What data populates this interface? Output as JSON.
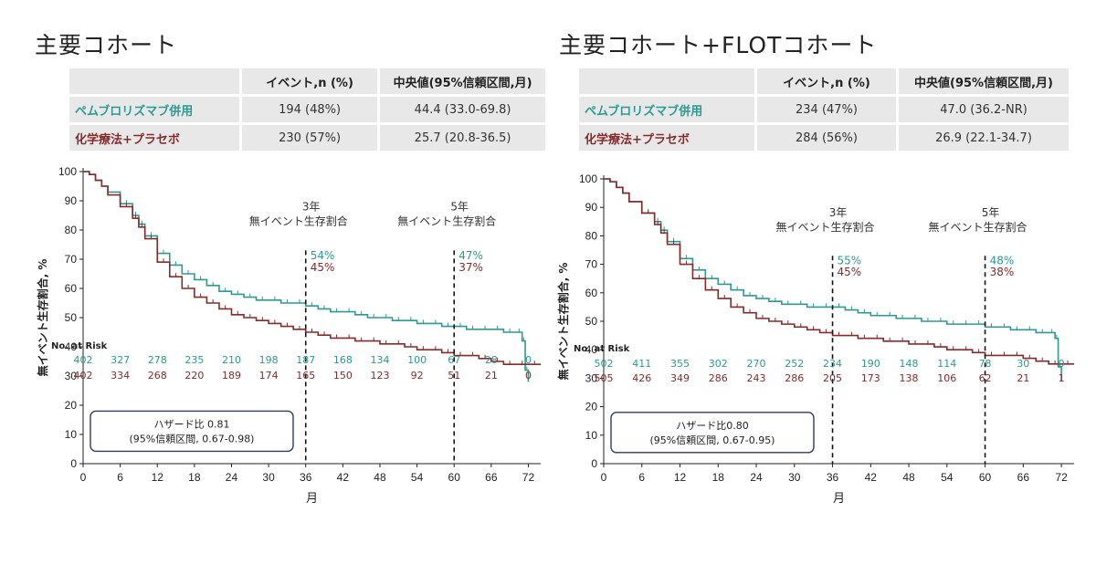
{
  "panels": [
    {
      "title": "主要コホート",
      "table": {
        "headers": [
          "",
          "イベント,n (%)",
          "中央値(95%信頼区間,月)"
        ],
        "rows": [
          {
            "name": "ペムブロリズマブ併用",
            "events": "194 (48%)",
            "median": "44.4 (33.0-69.8)"
          },
          {
            "name": "化学療法+プラセボ",
            "events": "230 (57%)",
            "median": "25.7 (20.8-36.5)"
          }
        ]
      }
    },
    {
      "title": "主要コホート+FLOTコホート",
      "table": {
        "headers": [
          "",
          "イベント,n (%)",
          "中央値(95%信頼区間,月)"
        ],
        "rows": [
          {
            "name": "ペムブロリズマブ併用",
            "events": "234 (47%)",
            "median": "47.0 (36.2-NR)"
          },
          {
            "name": "化学療法+プラセボ",
            "events": "284 (56%)",
            "median": "26.9 (22.1-34.7)"
          }
        ]
      }
    }
  ],
  "chart_data": [
    {
      "type": "line",
      "title": "",
      "xlabel": "月",
      "ylabel": "無イベント生存割合, %",
      "xlim": [
        0,
        74
      ],
      "ylim": [
        0,
        100
      ],
      "xticks": [
        0,
        6,
        12,
        18,
        24,
        30,
        36,
        42,
        48,
        54,
        60,
        66,
        72
      ],
      "yticks": [
        0,
        10,
        20,
        30,
        40,
        50,
        60,
        70,
        80,
        90,
        100
      ],
      "colors": {
        "pembro": "#2c9a93",
        "chemo": "#862a2a"
      },
      "series": [
        {
          "key": "pembro",
          "x": [
            0,
            1,
            2,
            3,
            4,
            6,
            8,
            9,
            10,
            12,
            14,
            16,
            18,
            20,
            22,
            24,
            26,
            28,
            30,
            32,
            34,
            36,
            38,
            40,
            42,
            44,
            46,
            48,
            50,
            52,
            54,
            56,
            58,
            60,
            62,
            64,
            66,
            68,
            70,
            71,
            71.5,
            72
          ],
          "y": [
            100,
            99,
            97,
            95,
            93,
            89,
            85,
            82,
            78,
            72,
            68,
            65,
            63,
            61,
            59,
            58,
            57,
            56,
            56,
            55,
            55,
            54,
            53,
            52,
            52,
            51,
            50,
            50,
            49,
            49,
            48,
            48,
            47,
            47,
            46,
            46,
            46,
            45,
            45,
            42,
            32,
            28
          ]
        },
        {
          "key": "chemo",
          "x": [
            0,
            1,
            2,
            3,
            4,
            6,
            8,
            9,
            10,
            12,
            14,
            16,
            18,
            20,
            22,
            24,
            26,
            28,
            30,
            32,
            34,
            36,
            38,
            40,
            42,
            44,
            46,
            48,
            50,
            52,
            54,
            56,
            58,
            60,
            62,
            64,
            66,
            68,
            70,
            72,
            74
          ],
          "y": [
            100,
            99,
            97,
            95,
            92,
            88,
            84,
            81,
            77,
            69,
            64,
            60,
            57,
            55,
            53,
            51,
            50,
            49,
            48,
            47,
            46,
            45,
            44,
            43,
            43,
            42,
            42,
            41,
            41,
            40,
            39,
            39,
            38,
            37,
            37,
            36,
            35,
            34,
            34,
            34,
            34
          ]
        }
      ],
      "milestones": [
        {
          "x": 36,
          "label_year": "3年",
          "label": "無イベント生存割合",
          "pembro": "54%",
          "chemo": "45%"
        },
        {
          "x": 60,
          "label_year": "5年",
          "label": "無イベント生存割合",
          "pembro": "47%",
          "chemo": "37%"
        }
      ],
      "hazard_ratio": {
        "line1": "ハザード比 0.81",
        "line2": "(95%信頼区間, 0.67-0.98)"
      },
      "at_risk": {
        "label": "No. at Risk",
        "pembro": [
          "402",
          "327",
          "278",
          "235",
          "210",
          "198",
          "187",
          "168",
          "134",
          "100",
          "67",
          "28",
          "0"
        ],
        "chemo": [
          "402",
          "334",
          "268",
          "220",
          "189",
          "174",
          "165",
          "150",
          "123",
          "92",
          "51",
          "21",
          "0"
        ]
      }
    },
    {
      "type": "line",
      "title": "",
      "xlabel": "月",
      "ylabel": "無イベント生存割合, %",
      "xlim": [
        0,
        74
      ],
      "ylim": [
        0,
        100
      ],
      "xticks": [
        0,
        6,
        12,
        18,
        24,
        30,
        36,
        42,
        48,
        54,
        60,
        66,
        72
      ],
      "yticks": [
        0,
        10,
        20,
        30,
        40,
        50,
        60,
        70,
        80,
        90,
        100
      ],
      "colors": {
        "pembro": "#2c9a93",
        "chemo": "#862a2a"
      },
      "series": [
        {
          "key": "pembro",
          "x": [
            0,
            1,
            2,
            3,
            4,
            6,
            8,
            9,
            10,
            12,
            14,
            16,
            18,
            20,
            22,
            24,
            26,
            28,
            30,
            32,
            34,
            36,
            38,
            40,
            42,
            44,
            46,
            48,
            50,
            52,
            54,
            56,
            58,
            60,
            62,
            64,
            66,
            68,
            70,
            71,
            71.5,
            72
          ],
          "y": [
            100,
            99,
            97,
            95,
            92,
            88,
            85,
            82,
            78,
            72,
            68,
            65,
            63,
            61,
            59,
            58,
            57,
            56,
            56,
            55,
            55,
            55,
            54,
            53,
            52,
            52,
            51,
            51,
            50,
            50,
            49,
            49,
            49,
            48,
            48,
            47,
            47,
            46,
            46,
            44,
            34,
            29
          ]
        },
        {
          "key": "chemo",
          "x": [
            0,
            1,
            2,
            3,
            4,
            6,
            8,
            9,
            10,
            12,
            14,
            16,
            18,
            20,
            22,
            24,
            26,
            28,
            30,
            32,
            34,
            36,
            38,
            40,
            42,
            44,
            46,
            48,
            50,
            52,
            54,
            56,
            58,
            60,
            62,
            64,
            66,
            68,
            70,
            72,
            74
          ],
          "y": [
            100,
            99,
            97,
            95,
            92,
            88,
            84,
            81,
            77,
            70,
            65,
            61,
            58,
            55,
            53,
            51,
            50,
            49,
            48,
            47,
            46,
            45,
            45,
            44,
            44,
            43,
            43,
            42,
            42,
            41,
            40,
            40,
            39,
            38,
            38,
            38,
            37,
            36,
            35,
            35,
            35
          ]
        }
      ],
      "milestones": [
        {
          "x": 36,
          "label_year": "3年",
          "label": "無イベント生存割合",
          "pembro": "55%",
          "chemo": "45%"
        },
        {
          "x": 60,
          "label_year": "5年",
          "label": "無イベント生存割合",
          "pembro": "48%",
          "chemo": "38%"
        }
      ],
      "hazard_ratio": {
        "line1": "ハザード比0.80",
        "line2": "(95%信頼区間, 0.67-0.95)"
      },
      "at_risk": {
        "label": "No. at Risk",
        "pembro": [
          "502",
          "411",
          "355",
          "302",
          "270",
          "252",
          "234",
          "190",
          "148",
          "114",
          "78",
          "30",
          "0"
        ],
        "chemo": [
          "505",
          "426",
          "349",
          "286",
          "243",
          "286",
          "205",
          "173",
          "138",
          "106",
          "62",
          "21",
          "1"
        ]
      }
    }
  ]
}
